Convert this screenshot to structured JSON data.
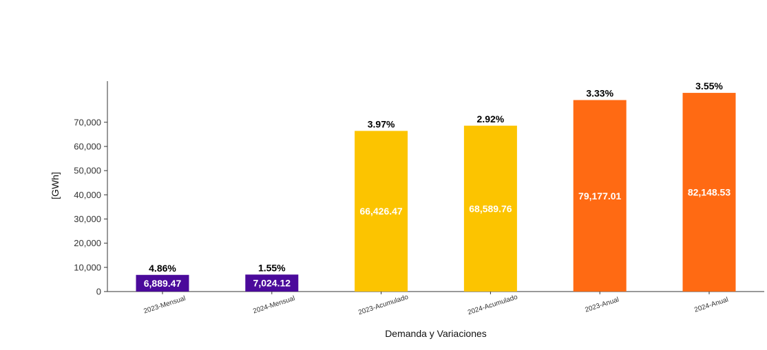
{
  "chart_data": {
    "type": "bar",
    "title": "",
    "xlabel": "Demanda y Variaciones",
    "ylabel": "[GWh]",
    "ylim": [
      0,
      87000
    ],
    "yticks": [
      0,
      10000,
      20000,
      30000,
      40000,
      50000,
      60000,
      70000
    ],
    "ytick_labels": [
      "0",
      "10,000",
      "20,000",
      "30,000",
      "40,000",
      "50,000",
      "60,000",
      "70,000"
    ],
    "grid": false,
    "categories": [
      "2023-Mensual",
      "2024-Mensual",
      "2023-Acumulado",
      "2024-Acumulado",
      "2023-Anual",
      "2024-Anual"
    ],
    "values": [
      6889.47,
      7024.12,
      66426.47,
      68589.76,
      79177.01,
      82148.53
    ],
    "value_labels": [
      "6,889.47",
      "7,024.12",
      "66,426.47",
      "68,589.76",
      "79,177.01",
      "82,148.53"
    ],
    "variation_labels": [
      "4.86%",
      "1.55%",
      "3.97%",
      "2.92%",
      "3.33%",
      "3.55%"
    ],
    "colors": [
      "#4b0a9b",
      "#4b0a9b",
      "#fcc400",
      "#fcc400",
      "#ff6a13",
      "#ff6a13"
    ]
  }
}
